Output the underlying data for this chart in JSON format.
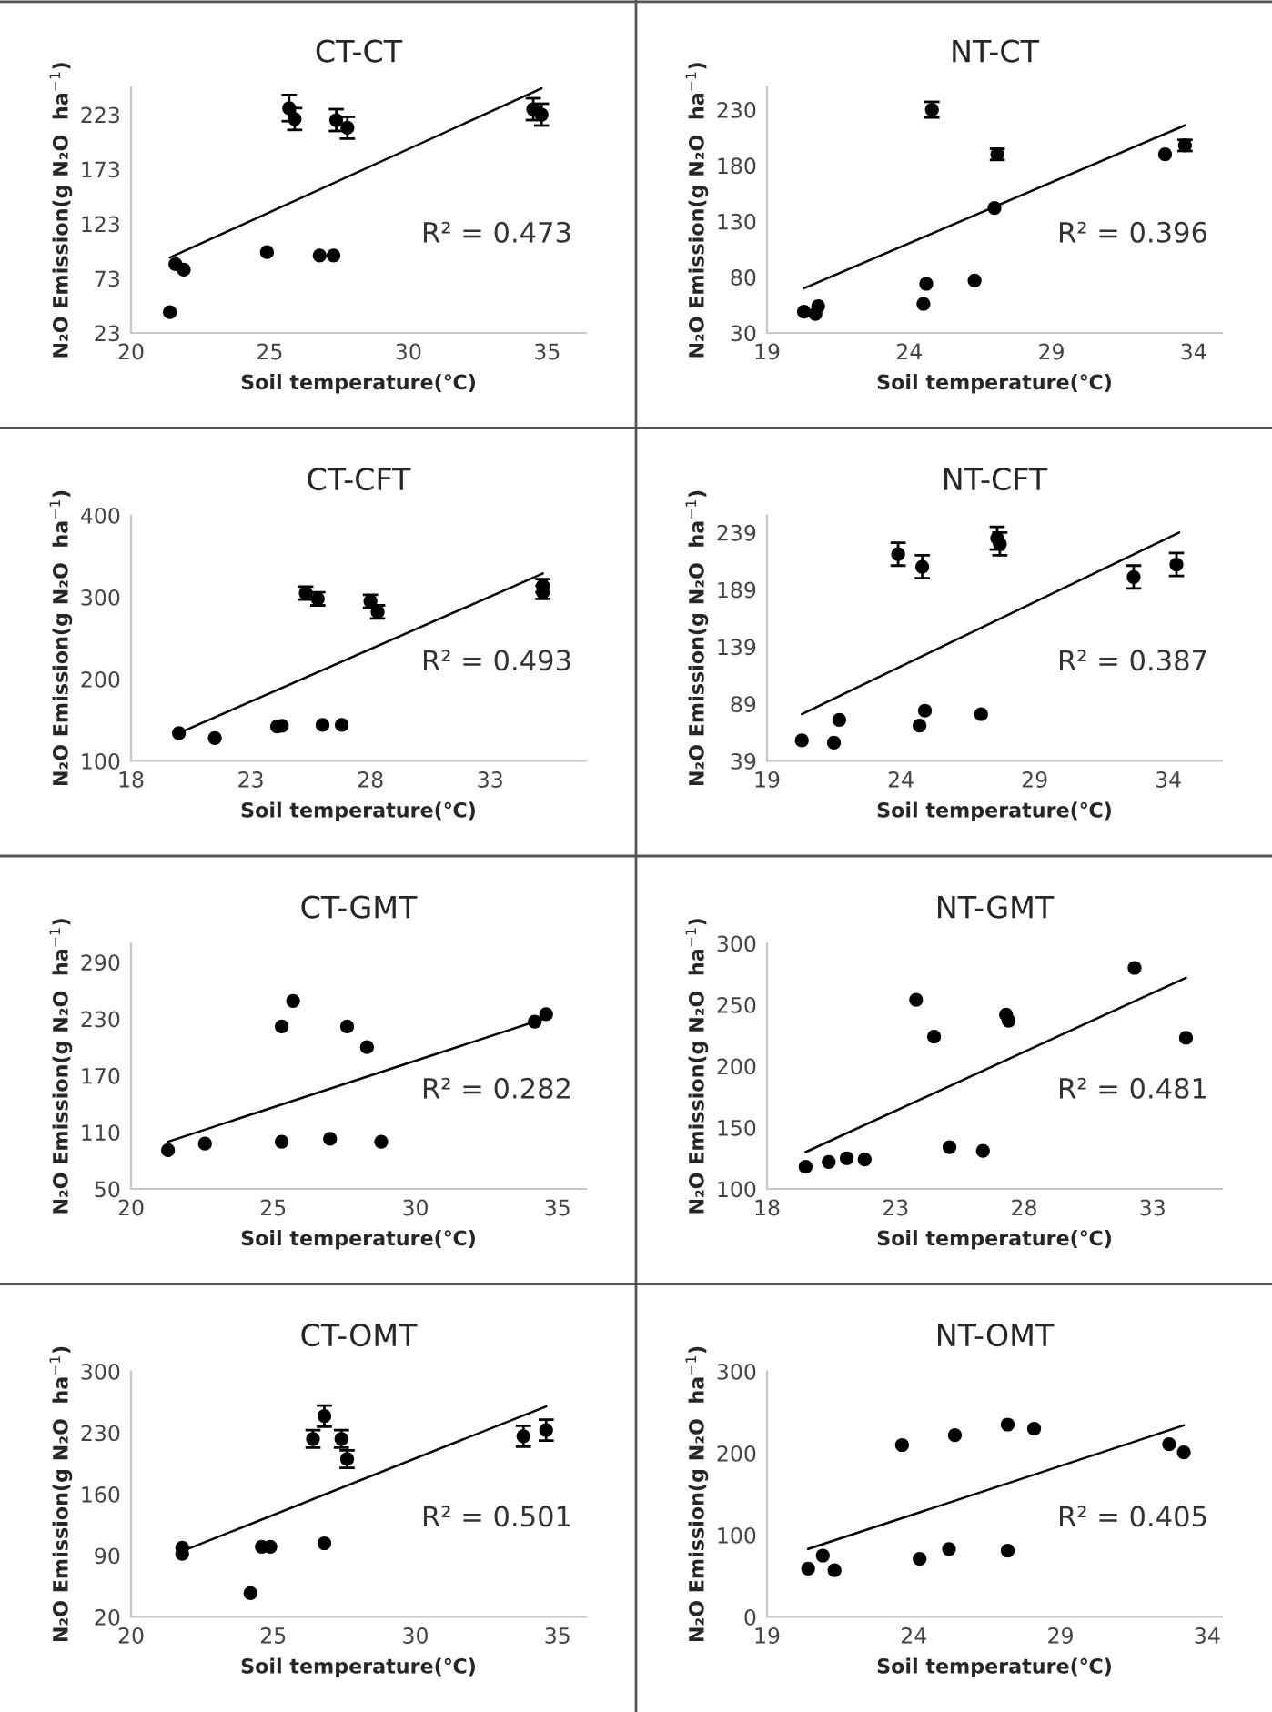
{
  "chart_data": [
    {
      "type": "scatter",
      "title": "CT-CT",
      "xlabel": "Soil temperature(℃)",
      "ylabel": "N₂O Emission(g N₂O  ha$^{−1}$)",
      "annotations": [
        "R² = 0.473"
      ],
      "marker": "circle",
      "xlim": [
        20,
        36.4
      ],
      "xticks": [
        20,
        25,
        30,
        35
      ],
      "ylim": [
        23,
        248
      ],
      "yticks": [
        23,
        73,
        123,
        173,
        223
      ],
      "series": [
        {
          "color": "#000000",
          "x": [
            21.4,
            21.6,
            21.9,
            24.9,
            25.7,
            25.9,
            26.8,
            27.3,
            27.4,
            27.8,
            34.5,
            34.8
          ],
          "values": [
            42,
            86,
            81,
            97,
            229,
            219,
            94,
            94,
            218,
            211,
            228,
            223
          ],
          "errors": [
            null,
            null,
            null,
            null,
            12,
            10,
            null,
            null,
            10,
            10,
            10,
            10
          ]
        },
        {
          "type": "line",
          "marker": "none",
          "color": "#000000",
          "x": [
            21.4,
            34.8
          ],
          "values": [
            92,
            247
          ]
        }
      ]
    },
    {
      "type": "scatter",
      "title": "NT-CT",
      "xlabel": "Soil temperature(℃)",
      "ylabel": "N₂O Emission(g N₂O  ha$^{−1}$)",
      "annotations": [
        "R² = 0.396"
      ],
      "marker": "circle",
      "xlim": [
        19,
        35
      ],
      "xticks": [
        19,
        24,
        29,
        34
      ],
      "ylim": [
        30,
        250
      ],
      "yticks": [
        30,
        80,
        130,
        180,
        230
      ],
      "series": [
        {
          "color": "#000000",
          "x": [
            20.3,
            20.7,
            20.8,
            24.5,
            24.6,
            24.8,
            26.3,
            27.0,
            27.1,
            33.0,
            33.7
          ],
          "values": [
            49,
            47,
            54,
            56,
            74,
            230,
            77,
            142,
            190,
            190,
            198
          ],
          "errors": [
            null,
            null,
            null,
            null,
            null,
            7,
            null,
            null,
            5,
            null,
            5
          ]
        },
        {
          "type": "line",
          "marker": "none",
          "color": "#000000",
          "x": [
            20.3,
            33.7
          ],
          "values": [
            70,
            216
          ]
        }
      ]
    },
    {
      "type": "scatter",
      "title": "CT-CFT",
      "xlabel": "Soil temperature(℃)",
      "ylabel": "N₂O Emission(g N₂O  ha$^{−1}$)",
      "annotations": [
        "R² = 0.493"
      ],
      "marker": "circle",
      "xlim": [
        18,
        37
      ],
      "xticks": [
        18,
        23,
        28,
        33
      ],
      "ylim": [
        100,
        400
      ],
      "yticks": [
        100,
        200,
        300,
        400
      ],
      "series": [
        {
          "color": "#000000",
          "x": [
            20.0,
            21.5,
            24.1,
            24.3,
            25.3,
            25.8,
            26.0,
            26.8,
            28.0,
            28.3,
            35.2,
            35.2
          ],
          "values": [
            134,
            128,
            142,
            143,
            305,
            298,
            144,
            144,
            295,
            282,
            314,
            306
          ],
          "errors": [
            null,
            null,
            null,
            null,
            8,
            8,
            null,
            null,
            8,
            8,
            8,
            8
          ]
        },
        {
          "type": "line",
          "marker": "none",
          "color": "#000000",
          "x": [
            20.0,
            35.2
          ],
          "values": [
            134,
            329
          ]
        }
      ]
    },
    {
      "type": "scatter",
      "title": "NT-CFT",
      "xlabel": "Soil temperature(℃)",
      "ylabel": "N₂O Emission(g N₂O  ha$^{−1}$)",
      "annotations": [
        "R² = 0.387"
      ],
      "marker": "circle",
      "xlim": [
        19,
        36
      ],
      "xticks": [
        19,
        24,
        29,
        34
      ],
      "ylim": [
        39,
        254
      ],
      "yticks": [
        39,
        89,
        139,
        189,
        239
      ],
      "series": [
        {
          "color": "#000000",
          "x": [
            20.3,
            21.5,
            21.7,
            23.9,
            24.7,
            24.8,
            24.9,
            27.0,
            27.6,
            27.7,
            32.7,
            34.3
          ],
          "values": [
            57,
            55,
            75,
            220,
            70,
            209,
            83,
            80,
            234,
            229,
            200,
            211
          ],
          "errors": [
            null,
            null,
            null,
            10,
            null,
            10,
            null,
            null,
            10,
            10,
            10,
            10
          ]
        },
        {
          "type": "line",
          "marker": "none",
          "color": "#000000",
          "x": [
            20.3,
            34.4
          ],
          "values": [
            80,
            239
          ]
        }
      ]
    },
    {
      "type": "scatter",
      "title": "CT-GMT",
      "xlabel": "Soil temperature(℃)",
      "ylabel": "N₂O Emission(g N₂O  ha$^{−1}$)",
      "annotations": [
        "R² = 0.282"
      ],
      "marker": "circle",
      "xlim": [
        20,
        36
      ],
      "xticks": [
        20,
        25,
        30,
        35
      ],
      "ylim": [
        50,
        310
      ],
      "yticks": [
        50,
        110,
        170,
        230,
        290
      ],
      "series": [
        {
          "color": "#000000",
          "x": [
            21.3,
            22.6,
            25.3,
            25.3,
            25.7,
            27.0,
            27.6,
            28.3,
            28.8,
            34.2,
            34.6
          ],
          "values": [
            91,
            98,
            222,
            100,
            249,
            103,
            222,
            200,
            100,
            227,
            235
          ]
        },
        {
          "type": "line",
          "marker": "none",
          "color": "#000000",
          "x": [
            21.3,
            34.6
          ],
          "values": [
            100,
            231
          ]
        }
      ]
    },
    {
      "type": "scatter",
      "title": "NT-GMT",
      "xlabel": "Soil temperature(℃)",
      "ylabel": "N₂O Emission(g N₂O  ha$^{−1}$)",
      "annotations": [
        "R² = 0.481"
      ],
      "marker": "circle",
      "xlim": [
        18,
        35.7
      ],
      "xticks": [
        18,
        23,
        28,
        33
      ],
      "ylim": [
        100,
        300
      ],
      "yticks": [
        100,
        150,
        200,
        250,
        300
      ],
      "series": [
        {
          "color": "#000000",
          "x": [
            19.5,
            20.4,
            21.1,
            21.8,
            23.8,
            24.5,
            25.1,
            26.4,
            27.3,
            27.4,
            32.3,
            34.3
          ],
          "values": [
            118,
            122,
            125,
            124,
            254,
            224,
            134,
            131,
            242,
            237,
            280,
            223
          ]
        },
        {
          "type": "line",
          "marker": "none",
          "color": "#000000",
          "x": [
            19.5,
            34.3
          ],
          "values": [
            130,
            272
          ]
        }
      ]
    },
    {
      "type": "scatter",
      "title": "CT-OMT",
      "xlabel": "Soil temperature(℃)",
      "ylabel": "N₂O Emission(g N₂O  ha$^{−1}$)",
      "annotations": [
        "R² = 0.501"
      ],
      "marker": "circle",
      "xlim": [
        20,
        36
      ],
      "xticks": [
        20,
        25,
        30,
        35
      ],
      "ylim": [
        20,
        300
      ],
      "yticks": [
        20,
        90,
        160,
        230,
        300
      ],
      "series": [
        {
          "color": "#000000",
          "x": [
            21.8,
            21.8,
            24.2,
            24.6,
            24.9,
            26.4,
            26.8,
            26.8,
            27.4,
            27.6,
            33.8,
            34.6
          ],
          "values": [
            99,
            92,
            47,
            100,
            100,
            223,
            249,
            104,
            223,
            200,
            226,
            233
          ],
          "errors": [
            null,
            null,
            null,
            null,
            null,
            10,
            12,
            null,
            10,
            10,
            12,
            12
          ]
        },
        {
          "type": "line",
          "marker": "none",
          "color": "#000000",
          "x": [
            21.8,
            34.6
          ],
          "values": [
            95,
            260
          ]
        }
      ]
    },
    {
      "type": "scatter",
      "title": "NT-OMT",
      "xlabel": "Soil temperature(℃)",
      "ylabel": "N₂O Emission(g N₂O  ha$^{−1}$)",
      "annotations": [
        "R² = 0.405"
      ],
      "marker": "circle",
      "xlim": [
        19,
        34.5
      ],
      "xticks": [
        19,
        24,
        29,
        34
      ],
      "ylim": [
        0,
        300
      ],
      "yticks": [
        0,
        100,
        200,
        300
      ],
      "series": [
        {
          "color": "#000000",
          "x": [
            20.4,
            20.9,
            21.3,
            23.6,
            24.2,
            25.2,
            25.4,
            27.2,
            27.2,
            28.1,
            32.7,
            33.2
          ],
          "values": [
            59,
            75,
            57,
            210,
            71,
            83,
            222,
            81,
            235,
            230,
            211,
            201
          ]
        },
        {
          "type": "line",
          "marker": "none",
          "color": "#000000",
          "x": [
            20.4,
            33.2
          ],
          "values": [
            83,
            234
          ]
        }
      ]
    }
  ]
}
